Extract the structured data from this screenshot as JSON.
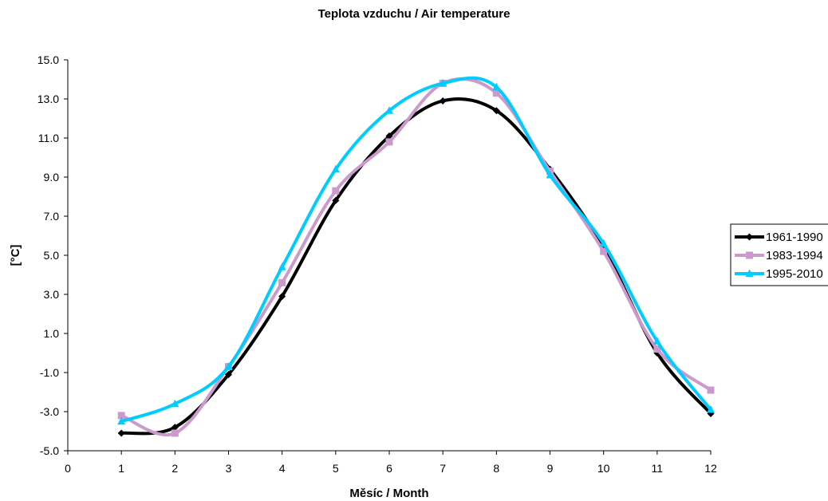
{
  "chart_data": {
    "type": "line",
    "title": "Teplota vzduchu / Air temperature",
    "xlabel": "Měsíc / Month",
    "ylabel": "[°C]",
    "x": [
      1,
      2,
      3,
      4,
      5,
      6,
      7,
      8,
      9,
      10,
      11,
      12
    ],
    "xlim": [
      0,
      12
    ],
    "ylim": [
      -5.0,
      15.0
    ],
    "xticks": [
      "0",
      "1",
      "2",
      "3",
      "4",
      "5",
      "6",
      "7",
      "8",
      "9",
      "10",
      "11",
      "12"
    ],
    "yticks": [
      "-5.0",
      "-3.0",
      "-1.0",
      "1.0",
      "3.0",
      "5.0",
      "7.0",
      "9.0",
      "11.0",
      "13.0",
      "15.0"
    ],
    "grid": false,
    "legend_position": "right",
    "series": [
      {
        "name": "1961-1990",
        "color": "#000000",
        "marker": "diamond",
        "values": [
          -4.1,
          -3.8,
          -1.1,
          2.9,
          7.8,
          11.1,
          12.9,
          12.4,
          9.4,
          5.4,
          0.0,
          -3.1
        ]
      },
      {
        "name": "1983-1994",
        "color": "#cc99cc",
        "marker": "square",
        "values": [
          -3.2,
          -4.1,
          -0.7,
          3.6,
          8.3,
          10.8,
          13.8,
          13.3,
          9.3,
          5.2,
          0.2,
          -1.9
        ]
      },
      {
        "name": "1995-2010",
        "color": "#00ccff",
        "marker": "triangle",
        "values": [
          -3.5,
          -2.6,
          -0.7,
          4.4,
          9.4,
          12.4,
          13.8,
          13.6,
          9.1,
          5.6,
          0.6,
          -2.9
        ]
      }
    ]
  }
}
